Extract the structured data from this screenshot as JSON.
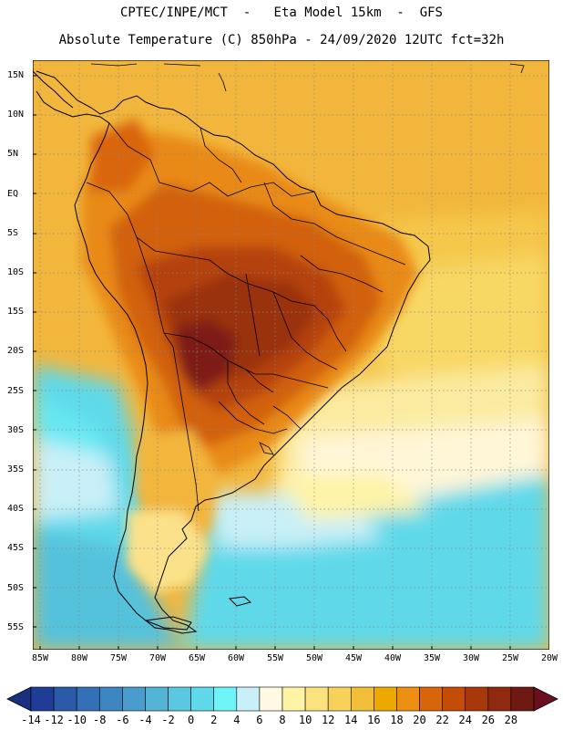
{
  "header": {
    "line1": "CPTEC/INPE/MCT  -   Eta Model 15km  -  GFS",
    "line2": "Absolute Temperature (C) 850hPa - 24/09/2020 12UTC fct=32h"
  },
  "map": {
    "lat_labels": [
      "15N",
      "10N",
      "5N",
      "EQ",
      "5S",
      "10S",
      "15S",
      "20S",
      "25S",
      "30S",
      "35S",
      "40S",
      "45S",
      "50S",
      "55S"
    ],
    "lon_labels": [
      "85W",
      "80W",
      "75W",
      "70W",
      "65W",
      "60W",
      "55W",
      "50W",
      "45W",
      "40W",
      "35W",
      "30W",
      "25W",
      "20W"
    ]
  },
  "colorbar": {
    "labels": [
      "-14",
      "-12",
      "-10",
      "-8",
      "-6",
      "-4",
      "-2",
      "0",
      "2",
      "4",
      "6",
      "8",
      "10",
      "12",
      "14",
      "16",
      "18",
      "20",
      "22",
      "24",
      "26",
      "28"
    ],
    "colors": [
      "#1f3d96",
      "#2a5aa8",
      "#3370b5",
      "#3d86c1",
      "#4a9ccd",
      "#54b4d6",
      "#5ac8e0",
      "#5fd9ea",
      "#6ef3f6",
      "#c9f0f8",
      "#fff9e4",
      "#fff3a6",
      "#fae27e",
      "#f7d25a",
      "#f2bf3b",
      "#eda900",
      "#ec8f12",
      "#d9650a",
      "#c44c06",
      "#a8380a",
      "#8f2a10",
      "#6e1a12"
    ],
    "below_color": "#1a2f80",
    "above_color": "#6a0f20"
  }
}
